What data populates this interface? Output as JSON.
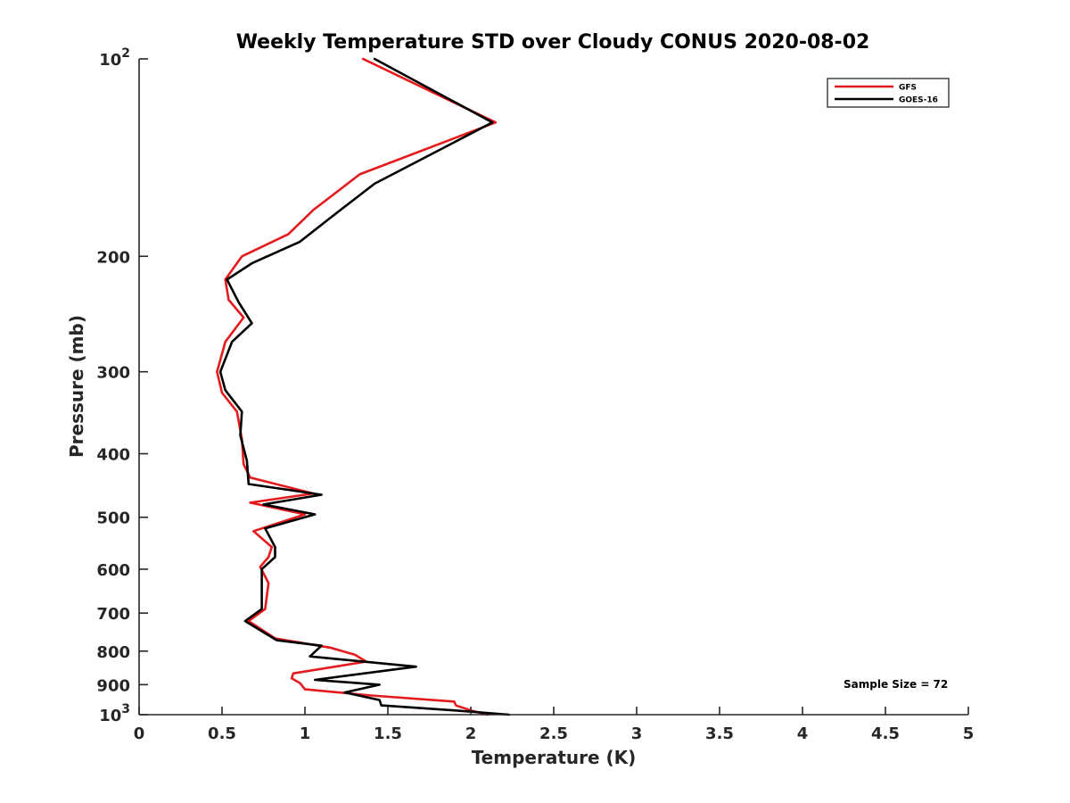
{
  "chart_data": {
    "type": "line",
    "title": "Weekly Temperature STD over Cloudy CONUS 2020-08-02",
    "xlabel": "Temperature (K)",
    "ylabel": "Pressure (mb)",
    "xlim": [
      0,
      5
    ],
    "ylim": [
      100,
      1000
    ],
    "y_scale": "log",
    "y_reversed": true,
    "grid": false,
    "legend_position": "top-right",
    "x_ticks": [
      0,
      0.5,
      1,
      1.5,
      2,
      2.5,
      3,
      3.5,
      4,
      4.5,
      5
    ],
    "x_tick_labels": [
      "0",
      "0.5",
      "1",
      "1.5",
      "2",
      "2.5",
      "3",
      "3.5",
      "4",
      "4.5",
      "5"
    ],
    "y_ticks": [
      {
        "value": 100,
        "base": "10",
        "exp": "2"
      },
      {
        "value": 200,
        "label": "200"
      },
      {
        "value": 300,
        "label": "300"
      },
      {
        "value": 400,
        "label": "400"
      },
      {
        "value": 500,
        "label": "500"
      },
      {
        "value": 600,
        "label": "600"
      },
      {
        "value": 700,
        "label": "700"
      },
      {
        "value": 800,
        "label": "800"
      },
      {
        "value": 900,
        "label": "900"
      },
      {
        "value": 1000,
        "base": "10",
        "exp": "3"
      }
    ],
    "annotation": "Sample Size = 72",
    "series": [
      {
        "name": "GFS",
        "color": "#e41a1c",
        "points": [
          [
            1.35,
            100
          ],
          [
            2.15,
            125
          ],
          [
            1.33,
            150
          ],
          [
            1.05,
            170
          ],
          [
            0.9,
            185
          ],
          [
            0.62,
            200
          ],
          [
            0.52,
            217
          ],
          [
            0.54,
            233
          ],
          [
            0.63,
            248
          ],
          [
            0.52,
            270
          ],
          [
            0.47,
            300
          ],
          [
            0.5,
            323
          ],
          [
            0.59,
            345
          ],
          [
            0.62,
            380
          ],
          [
            0.63,
            415
          ],
          [
            0.67,
            435
          ],
          [
            1.05,
            460
          ],
          [
            0.67,
            475
          ],
          [
            1.0,
            495
          ],
          [
            0.69,
            525
          ],
          [
            0.8,
            555
          ],
          [
            0.78,
            575
          ],
          [
            0.73,
            595
          ],
          [
            0.78,
            630
          ],
          [
            0.76,
            690
          ],
          [
            0.66,
            720
          ],
          [
            0.82,
            765
          ],
          [
            1.15,
            790
          ],
          [
            1.3,
            810
          ],
          [
            1.37,
            830
          ],
          [
            0.93,
            865
          ],
          [
            0.92,
            880
          ],
          [
            0.97,
            895
          ],
          [
            1.0,
            915
          ],
          [
            1.4,
            935
          ],
          [
            1.9,
            955
          ],
          [
            1.91,
            968
          ],
          [
            2.0,
            985
          ],
          [
            2.1,
            1000
          ]
        ]
      },
      {
        "name": "GOES-16",
        "color": "#000000",
        "points": [
          [
            1.42,
            100
          ],
          [
            2.13,
            125
          ],
          [
            1.42,
            155
          ],
          [
            1.15,
            175
          ],
          [
            0.97,
            190
          ],
          [
            0.68,
            205
          ],
          [
            0.53,
            217
          ],
          [
            0.6,
            235
          ],
          [
            0.68,
            253
          ],
          [
            0.56,
            270
          ],
          [
            0.49,
            300
          ],
          [
            0.52,
            320
          ],
          [
            0.62,
            345
          ],
          [
            0.61,
            375
          ],
          [
            0.65,
            410
          ],
          [
            0.66,
            445
          ],
          [
            1.1,
            462
          ],
          [
            0.75,
            478
          ],
          [
            1.06,
            495
          ],
          [
            0.76,
            520
          ],
          [
            0.82,
            555
          ],
          [
            0.82,
            575
          ],
          [
            0.74,
            600
          ],
          [
            0.74,
            635
          ],
          [
            0.74,
            690
          ],
          [
            0.64,
            720
          ],
          [
            0.83,
            770
          ],
          [
            1.1,
            785
          ],
          [
            1.03,
            815
          ],
          [
            1.67,
            845
          ],
          [
            1.06,
            885
          ],
          [
            1.45,
            900
          ],
          [
            1.24,
            925
          ],
          [
            1.45,
            950
          ],
          [
            1.46,
            968
          ],
          [
            1.9,
            985
          ],
          [
            2.23,
            1000
          ]
        ]
      }
    ]
  }
}
